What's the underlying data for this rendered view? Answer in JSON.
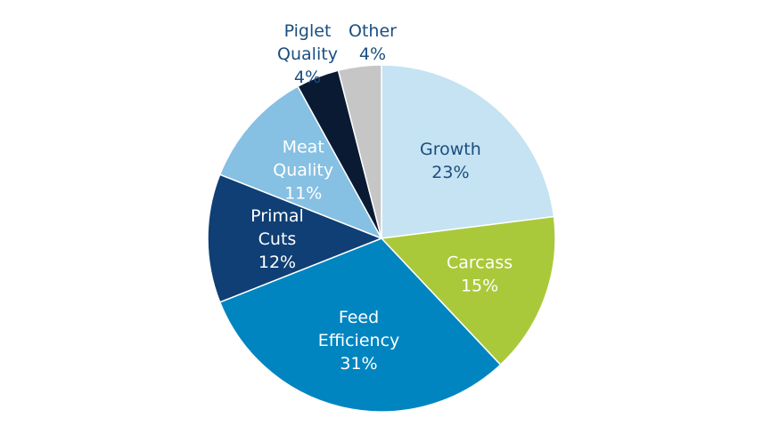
{
  "chart_data": {
    "type": "pie",
    "title": "",
    "start_angle_deg": 0,
    "direction": "clockwise",
    "slices": [
      {
        "lines": [
          "Growth",
          "23%"
        ],
        "value": 23,
        "color": "#c5e3f2",
        "text_color": "#1b4e7f",
        "label_inside": true
      },
      {
        "lines": [
          "Carcass",
          "15%"
        ],
        "value": 15,
        "color": "#a9c93a",
        "text_color": "#ffffff",
        "label_inside": true
      },
      {
        "lines": [
          "Feed",
          "Efficiency",
          "31%"
        ],
        "value": 31,
        "color": "#0085c0",
        "text_color": "#ffffff",
        "label_inside": true
      },
      {
        "lines": [
          "Primal",
          "Cuts",
          "12%"
        ],
        "value": 12,
        "color": "#0f3f74",
        "text_color": "#ffffff",
        "label_inside": true
      },
      {
        "lines": [
          "Meat",
          "Quality",
          "11%"
        ],
        "value": 11,
        "color": "#86c0e3",
        "text_color": "#ffffff",
        "label_inside": true
      },
      {
        "lines": [
          "Piglet",
          "Quality",
          "4%"
        ],
        "value": 4,
        "color": "#0a1a33",
        "text_color": "#1b4e7f",
        "label_inside": false
      },
      {
        "lines": [
          "Other",
          "4%"
        ],
        "value": 4,
        "color": "#c6c6c6",
        "text_color": "#1b4e7f",
        "label_inside": false
      }
    ]
  }
}
